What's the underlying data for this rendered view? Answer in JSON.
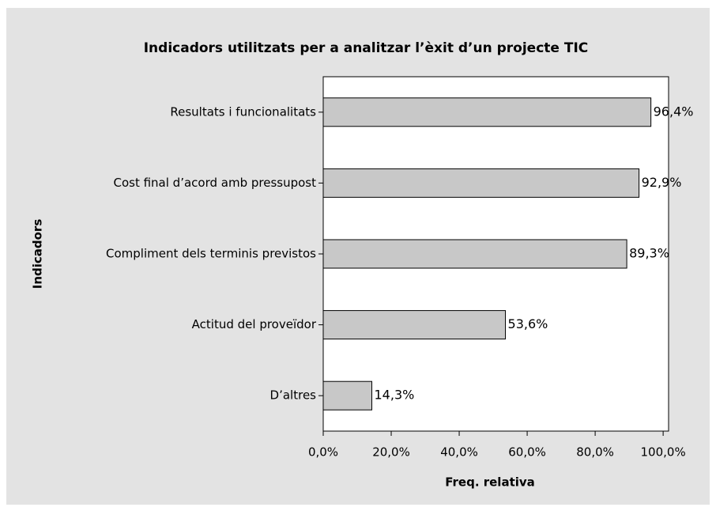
{
  "chart_data": {
    "type": "bar",
    "orientation": "horizontal",
    "title": "Indicadors utilitzats per a analitzar l’èxit d’un projecte TIC",
    "xlabel": "Freq. relativa",
    "ylabel": "Indicadors",
    "categories": [
      "Resultats i funcionalitats",
      "Cost final d’acord amb pressupost",
      "Compliment dels terminis previstos",
      "Actitud del proveïdor",
      "D’altres"
    ],
    "values": [
      96.4,
      92.9,
      89.3,
      53.6,
      14.3
    ],
    "value_labels": [
      "96,4%",
      "92,9%",
      "89,3%",
      "53,6%",
      "14,3%"
    ],
    "color": "#c8c8c8",
    "xlim": [
      0,
      101.6
    ],
    "xticks": [
      {
        "value": 0,
        "label": "0,0%"
      },
      {
        "value": 20,
        "label": "20,0%"
      },
      {
        "value": 40,
        "label": "40,0%"
      },
      {
        "value": 60,
        "label": "60,0%"
      },
      {
        "value": 80,
        "label": "80,0%"
      },
      {
        "value": 100,
        "label": "100,0%"
      }
    ],
    "grid": false
  }
}
